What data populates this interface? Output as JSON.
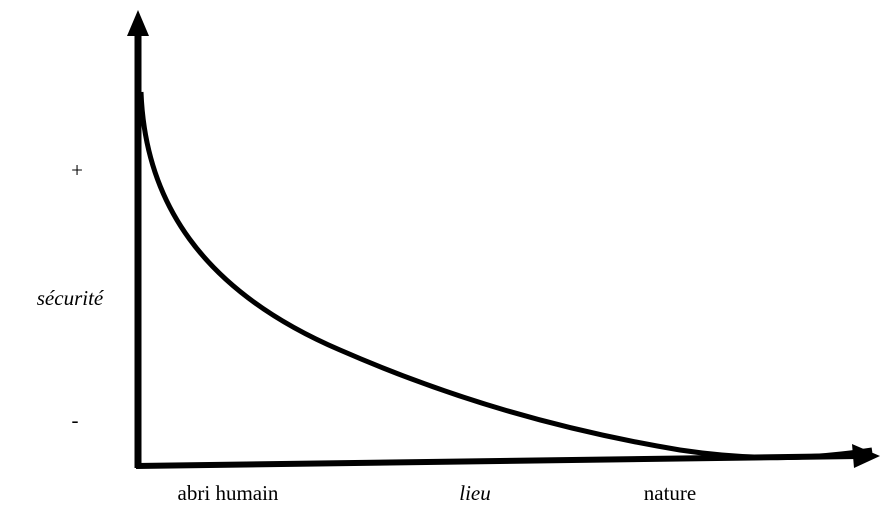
{
  "y_axis": {
    "high": "+",
    "label": "sécurité",
    "low": "-"
  },
  "x_axis": {
    "left": "abri humain",
    "label": "lieu",
    "right": "nature"
  }
}
